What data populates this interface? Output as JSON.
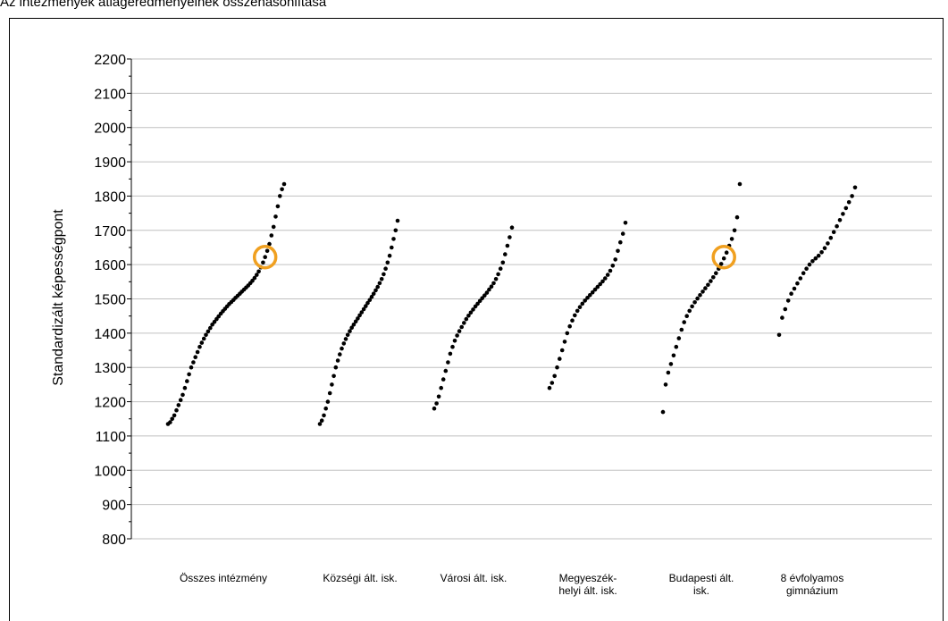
{
  "header": {
    "title_fragment": "Az intézmények átlageredményeinek összehasonlítása"
  },
  "chart_data": {
    "type": "scatter",
    "title": "",
    "xlabel": "",
    "ylabel": "Standardizált képességpont",
    "ylim": [
      800,
      2200
    ],
    "yticks": [
      800,
      900,
      1000,
      1100,
      1200,
      1300,
      1400,
      1500,
      1600,
      1700,
      1800,
      1900,
      2000,
      2100,
      2200
    ],
    "grid": "horizontal",
    "categories": [
      [
        "Összes intézmény"
      ],
      [
        "Községi ált. isk."
      ],
      [
        "Városi ált. isk."
      ],
      [
        "Megyeszék-",
        "helyi ált. isk."
      ],
      [
        "Budapesti ált.",
        "isk."
      ],
      [
        "8 évfolyamos",
        "gimnázium"
      ]
    ],
    "series": [
      {
        "category_index": 0,
        "distribution": "sorted school averages, S-shaped",
        "values": [
          1135,
          1140,
          1150,
          1160,
          1175,
          1190,
          1205,
          1220,
          1240,
          1260,
          1280,
          1300,
          1315,
          1330,
          1345,
          1360,
          1372,
          1384,
          1395,
          1405,
          1415,
          1425,
          1433,
          1441,
          1449,
          1457,
          1464,
          1471,
          1478,
          1485,
          1491,
          1497,
          1503,
          1509,
          1515,
          1521,
          1527,
          1533,
          1539,
          1546,
          1553,
          1561,
          1570,
          1580,
          1592,
          1606,
          1622,
          1640,
          1660,
          1685,
          1710,
          1740,
          1770,
          1800,
          1820,
          1835
        ]
      },
      {
        "category_index": 1,
        "distribution": "sorted school averages, S-shaped",
        "values": [
          1135,
          1145,
          1160,
          1180,
          1200,
          1225,
          1250,
          1275,
          1300,
          1320,
          1338,
          1355,
          1370,
          1383,
          1395,
          1406,
          1416,
          1425,
          1434,
          1443,
          1452,
          1461,
          1470,
          1479,
          1488,
          1497,
          1506,
          1515,
          1525,
          1535,
          1546,
          1558,
          1572,
          1588,
          1606,
          1626,
          1650,
          1675,
          1700,
          1728
        ]
      },
      {
        "category_index": 2,
        "distribution": "sorted school averages, S-shaped",
        "values": [
          1180,
          1195,
          1215,
          1240,
          1265,
          1290,
          1315,
          1340,
          1360,
          1378,
          1393,
          1406,
          1418,
          1430,
          1441,
          1451,
          1460,
          1469,
          1478,
          1486,
          1494,
          1502,
          1510,
          1518,
          1527,
          1536,
          1546,
          1558,
          1572,
          1588,
          1606,
          1630,
          1655,
          1680,
          1708
        ]
      },
      {
        "category_index": 3,
        "distribution": "sorted school averages, S-shaped",
        "values": [
          1240,
          1255,
          1275,
          1300,
          1325,
          1350,
          1375,
          1400,
          1420,
          1437,
          1452,
          1465,
          1476,
          1486,
          1495,
          1503,
          1511,
          1519,
          1527,
          1535,
          1543,
          1551,
          1560,
          1570,
          1582,
          1597,
          1615,
          1640,
          1665,
          1690,
          1722
        ]
      },
      {
        "category_index": 4,
        "distribution": "sorted school averages, S-shaped",
        "values": [
          1170,
          1250,
          1285,
          1310,
          1335,
          1360,
          1385,
          1410,
          1432,
          1450,
          1465,
          1478,
          1490,
          1501,
          1511,
          1521,
          1531,
          1541,
          1552,
          1563,
          1575,
          1588,
          1602,
          1618,
          1635,
          1655,
          1675,
          1700,
          1738,
          1835
        ]
      },
      {
        "category_index": 5,
        "distribution": "sorted school averages",
        "values": [
          1395,
          1445,
          1470,
          1495,
          1515,
          1530,
          1545,
          1560,
          1575,
          1588,
          1600,
          1610,
          1618,
          1626,
          1636,
          1648,
          1662,
          1678,
          1695,
          1712,
          1730,
          1748,
          1765,
          1782,
          1800,
          1825
        ]
      }
    ],
    "highlights": [
      {
        "category_index": 0,
        "value": 1622,
        "color": "#f0a020",
        "shape": "circle"
      },
      {
        "category_index": 4,
        "value": 1622,
        "color": "#f0a020",
        "shape": "circle"
      }
    ]
  },
  "colors": {
    "points": "#000000",
    "grid": "#c0c0c0",
    "highlight": "#f0a020"
  }
}
